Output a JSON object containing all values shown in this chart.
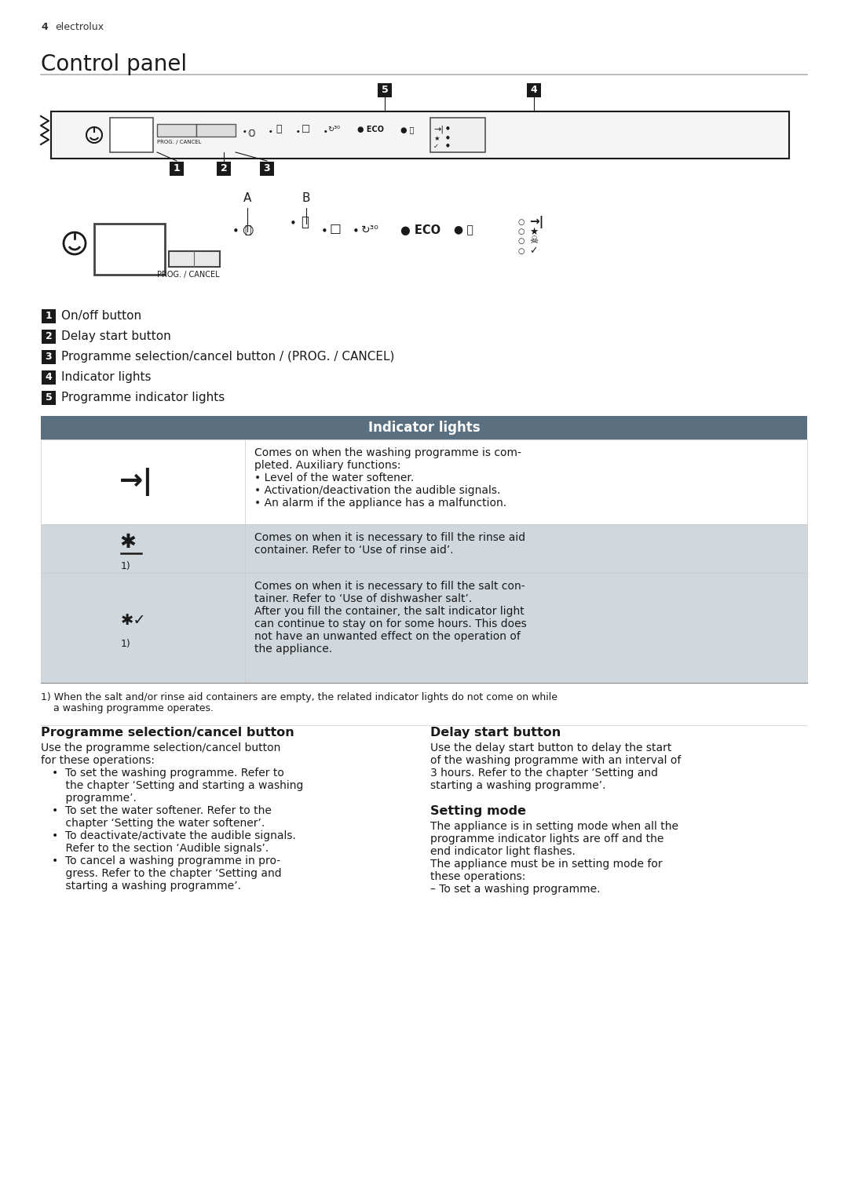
{
  "page_num": "4",
  "brand": "electrolux",
  "title": "Control panel",
  "bg_color": "#ffffff",
  "text_color": "#1a1a1a",
  "header_bg": "#5a7080",
  "header_text": "#ffffff",
  "row_bg_white": "#ffffff",
  "row_bg_gray": "#d0d8de",
  "numbered_labels": [
    {
      "num": "1",
      "text": "On/off button"
    },
    {
      "num": "2",
      "text": "Delay start button"
    },
    {
      "num": "3",
      "text": "Programme selection/cancel button / (PROG. / CANCEL)"
    },
    {
      "num": "4",
      "text": "Indicator lights"
    },
    {
      "num": "5",
      "text": "Programme indicator lights"
    }
  ],
  "table_header": "Indicator lights",
  "table_rows": [
    {
      "symbol": "arrow_end",
      "description_lines": [
        "Comes on when the washing programme is com-",
        "pleted. Auxiliary functions:",
        "• Level of the water softener.",
        "• Activation/deactivation the audible signals.",
        "• An alarm if the appliance has a malfunction."
      ],
      "bg": "#ffffff",
      "footnote": false
    },
    {
      "symbol": "rinse_star",
      "description_lines": [
        "Comes on when it is necessary to fill the rinse aid",
        "container. Refer to ‘Use of rinse aid’."
      ],
      "bg": "#d0d8de",
      "footnote": true
    },
    {
      "symbol": "salt",
      "description_lines": [
        "Comes on when it is necessary to fill the salt con-",
        "tainer. Refer to ‘Use of dishwasher salt’.",
        "After you fill the container, the salt indicator light",
        "can continue to stay on for some hours. This does",
        "not have an unwanted effect on the operation of",
        "the appliance."
      ],
      "bg": "#d0d8de",
      "footnote": true
    }
  ],
  "footnote_line1": "1) When the salt and/or rinse aid containers are empty, the related indicator lights do not come on while",
  "footnote_line2": "    a washing programme operates.",
  "section1_title": "Programme selection/cancel button",
  "section1_lines": [
    "Use the programme selection/cancel button",
    "for these operations:",
    "•  To set the washing programme. Refer to",
    "    the chapter ‘Setting and starting a washing",
    "    programme’.",
    "•  To set the water softener. Refer to the",
    "    chapter ‘Setting the water softener’.",
    "•  To deactivate/activate the audible signals.",
    "    Refer to the section ‘Audible signals’.",
    "•  To cancel a washing programme in pro-",
    "    gress. Refer to the chapter ‘Setting and",
    "    starting a washing programme’."
  ],
  "section2_title": "Delay start button",
  "section2_lines": [
    "Use the delay start button to delay the start",
    "of the washing programme with an interval of",
    "3 hours. Refer to the chapter ‘Setting and",
    "starting a washing programme’."
  ],
  "section3_title": "Setting mode",
  "section3_lines": [
    "The appliance is in setting mode when all the",
    "programme indicator lights are off and the",
    "end indicator light flashes.",
    "The appliance must be in setting mode for",
    "these operations:",
    "– To set a washing programme."
  ]
}
